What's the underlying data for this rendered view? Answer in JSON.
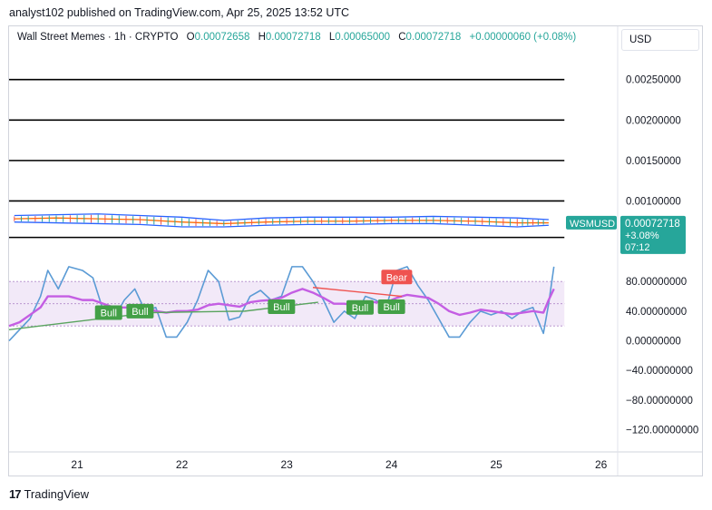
{
  "publisher_line": "analyst102 published on TradingView.com, Apr 25, 2025 13:52 UTC",
  "legend": {
    "symbol": "Wall Street Memes · 1h · CRYPTO",
    "o_label": "O",
    "o_value": "0.00072658",
    "h_label": "H",
    "h_value": "0.00072718",
    "l_label": "L",
    "l_value": "0.00065000",
    "c_label": "C",
    "c_value": "0.00072718",
    "change": "+0.00000060 (+0.08%)"
  },
  "currency": "USD",
  "footer_brand": "TradingView",
  "colors": {
    "up": "#26a69a",
    "down": "#ef5350",
    "grid_line": "#000000",
    "stoch_k": "#5b9bd5",
    "stoch_d": "#c45ee3",
    "signal_line": "#5aa45f",
    "bull_label": "#43a047",
    "bear_label": "#ef5350",
    "axis_text": "#131722"
  },
  "chart_data": [
    {
      "type": "line",
      "pane": "price",
      "symbol": "WSMUSD",
      "y_ticks": [
        "0.00250000",
        "0.00200000",
        "0.00150000",
        "0.00100000"
      ],
      "y_tick_values": [
        0.0025,
        0.002,
        0.0015,
        0.001
      ],
      "ylim": [
        0.0004,
        0.0029
      ],
      "horizontal_lines": [
        0.0025,
        0.002,
        0.0015,
        0.001,
        0.00055
      ],
      "x_ticks": [
        "21",
        "22",
        "23",
        "24",
        "25",
        "26"
      ],
      "x_tick_values": [
        21,
        22,
        23,
        24,
        25,
        26
      ],
      "xlim": [
        20.35,
        26.15
      ],
      "series": [
        {
          "name": "",
          "role": "upper-band",
          "x": [
            20.4,
            20.8,
            21.2,
            21.6,
            22.0,
            22.4,
            22.8,
            23.2,
            23.6,
            24.0,
            24.4,
            24.8,
            25.2,
            25.5
          ],
          "values": [
            0.00082,
            0.00083,
            0.00084,
            0.00082,
            0.0008,
            0.00076,
            0.00079,
            0.0008,
            0.0008,
            0.0008,
            0.00081,
            0.0008,
            0.00079,
            0.00077
          ]
        },
        {
          "name": "",
          "role": "middle",
          "x": [
            20.4,
            20.8,
            21.2,
            21.6,
            22.0,
            22.4,
            22.8,
            23.2,
            23.6,
            24.0,
            24.4,
            24.8,
            25.2,
            25.5
          ],
          "values": [
            0.00078,
            0.00079,
            0.00078,
            0.00077,
            0.00074,
            0.00072,
            0.00074,
            0.00075,
            0.00075,
            0.00076,
            0.00076,
            0.00075,
            0.00073,
            0.00073
          ]
        },
        {
          "name": "",
          "role": "lower-band",
          "x": [
            20.4,
            20.8,
            21.2,
            21.6,
            22.0,
            22.4,
            22.8,
            23.2,
            23.6,
            24.0,
            24.4,
            24.8,
            25.2,
            25.5
          ],
          "values": [
            0.00074,
            0.00073,
            0.00072,
            0.00071,
            0.00068,
            0.00068,
            0.0007,
            0.00071,
            0.00071,
            0.00072,
            0.00072,
            0.0007,
            0.00068,
            0.0007
          ]
        }
      ],
      "last_price_label": {
        "symbol": "WSMUSD",
        "price": "0.00072718",
        "change": "+3.08%",
        "countdown": "07:12"
      }
    },
    {
      "type": "line",
      "pane": "oscillator",
      "y_ticks": [
        "80.00000000",
        "40.00000000",
        "0.00000000",
        "−40.00000000",
        "−80.00000000",
        "−120.00000000"
      ],
      "y_tick_values": [
        80,
        40,
        0,
        -40,
        -80,
        -120
      ],
      "ylim": [
        -150,
        117
      ],
      "bands": {
        "upper": 80,
        "middle": 50,
        "lower": 20
      },
      "series": [
        {
          "name": "",
          "role": "stoch-k",
          "x": [
            20.35,
            20.45,
            20.55,
            20.65,
            20.72,
            20.82,
            20.92,
            21.05,
            21.15,
            21.25,
            21.35,
            21.45,
            21.55,
            21.65,
            21.75,
            21.85,
            21.95,
            22.05,
            22.15,
            22.25,
            22.35,
            22.45,
            22.55,
            22.65,
            22.75,
            22.85,
            22.95,
            23.05,
            23.15,
            23.25,
            23.35,
            23.45,
            23.55,
            23.65,
            23.75,
            23.85,
            23.95,
            24.05,
            24.15,
            24.25,
            24.35,
            24.45,
            24.55,
            24.65,
            24.75,
            24.85,
            24.95,
            25.05,
            25.15,
            25.25,
            25.35,
            25.45,
            25.5,
            25.55
          ],
          "values": [
            0,
            15,
            30,
            60,
            95,
            70,
            100,
            95,
            85,
            40,
            30,
            55,
            70,
            40,
            45,
            5,
            5,
            25,
            55,
            95,
            80,
            28,
            32,
            60,
            68,
            55,
            60,
            100,
            100,
            80,
            55,
            25,
            40,
            30,
            60,
            55,
            45,
            95,
            100,
            75,
            55,
            30,
            5,
            5,
            25,
            40,
            35,
            40,
            30,
            40,
            45,
            10,
            50,
            100
          ]
        },
        {
          "name": "",
          "role": "stoch-d",
          "x": [
            20.35,
            20.45,
            20.55,
            20.65,
            20.72,
            20.82,
            20.92,
            21.05,
            21.15,
            21.25,
            21.35,
            21.45,
            21.55,
            21.65,
            21.75,
            21.85,
            21.95,
            22.05,
            22.15,
            22.25,
            22.35,
            22.45,
            22.55,
            22.65,
            22.75,
            22.85,
            22.95,
            23.05,
            23.15,
            23.25,
            23.35,
            23.45,
            23.55,
            23.65,
            23.75,
            23.85,
            23.95,
            24.05,
            24.15,
            24.25,
            24.35,
            24.45,
            24.55,
            24.65,
            24.75,
            24.85,
            24.95,
            25.05,
            25.15,
            25.25,
            25.35,
            25.45,
            25.5,
            25.55
          ],
          "values": [
            20,
            25,
            35,
            45,
            60,
            60,
            60,
            55,
            55,
            50,
            45,
            45,
            45,
            45,
            40,
            38,
            40,
            40,
            42,
            48,
            50,
            48,
            46,
            52,
            54,
            55,
            58,
            65,
            70,
            65,
            58,
            50,
            50,
            48,
            52,
            52,
            52,
            58,
            62,
            60,
            58,
            50,
            40,
            35,
            38,
            42,
            40,
            38,
            36,
            38,
            40,
            38,
            55,
            70
          ]
        },
        {
          "name": "",
          "role": "bull-divergence",
          "x": [
            20.35,
            21.7,
            22.6,
            23.3
          ],
          "values": [
            15,
            38,
            40,
            52
          ]
        },
        {
          "name": "",
          "role": "bear-divergence",
          "x": [
            23.25,
            24.1
          ],
          "values": [
            72,
            60
          ]
        }
      ],
      "annotations": [
        {
          "text": "Bull",
          "x": 21.3,
          "y": 38,
          "kind": "bull"
        },
        {
          "text": "Bull",
          "x": 21.6,
          "y": 40,
          "kind": "bull"
        },
        {
          "text": "Bull",
          "x": 22.95,
          "y": 46,
          "kind": "bull"
        },
        {
          "text": "Bull",
          "x": 23.7,
          "y": 45,
          "kind": "bull"
        },
        {
          "text": "Bull",
          "x": 24.0,
          "y": 46,
          "kind": "bull"
        },
        {
          "text": "Bear",
          "x": 24.05,
          "y": 86,
          "kind": "bear"
        }
      ]
    }
  ]
}
